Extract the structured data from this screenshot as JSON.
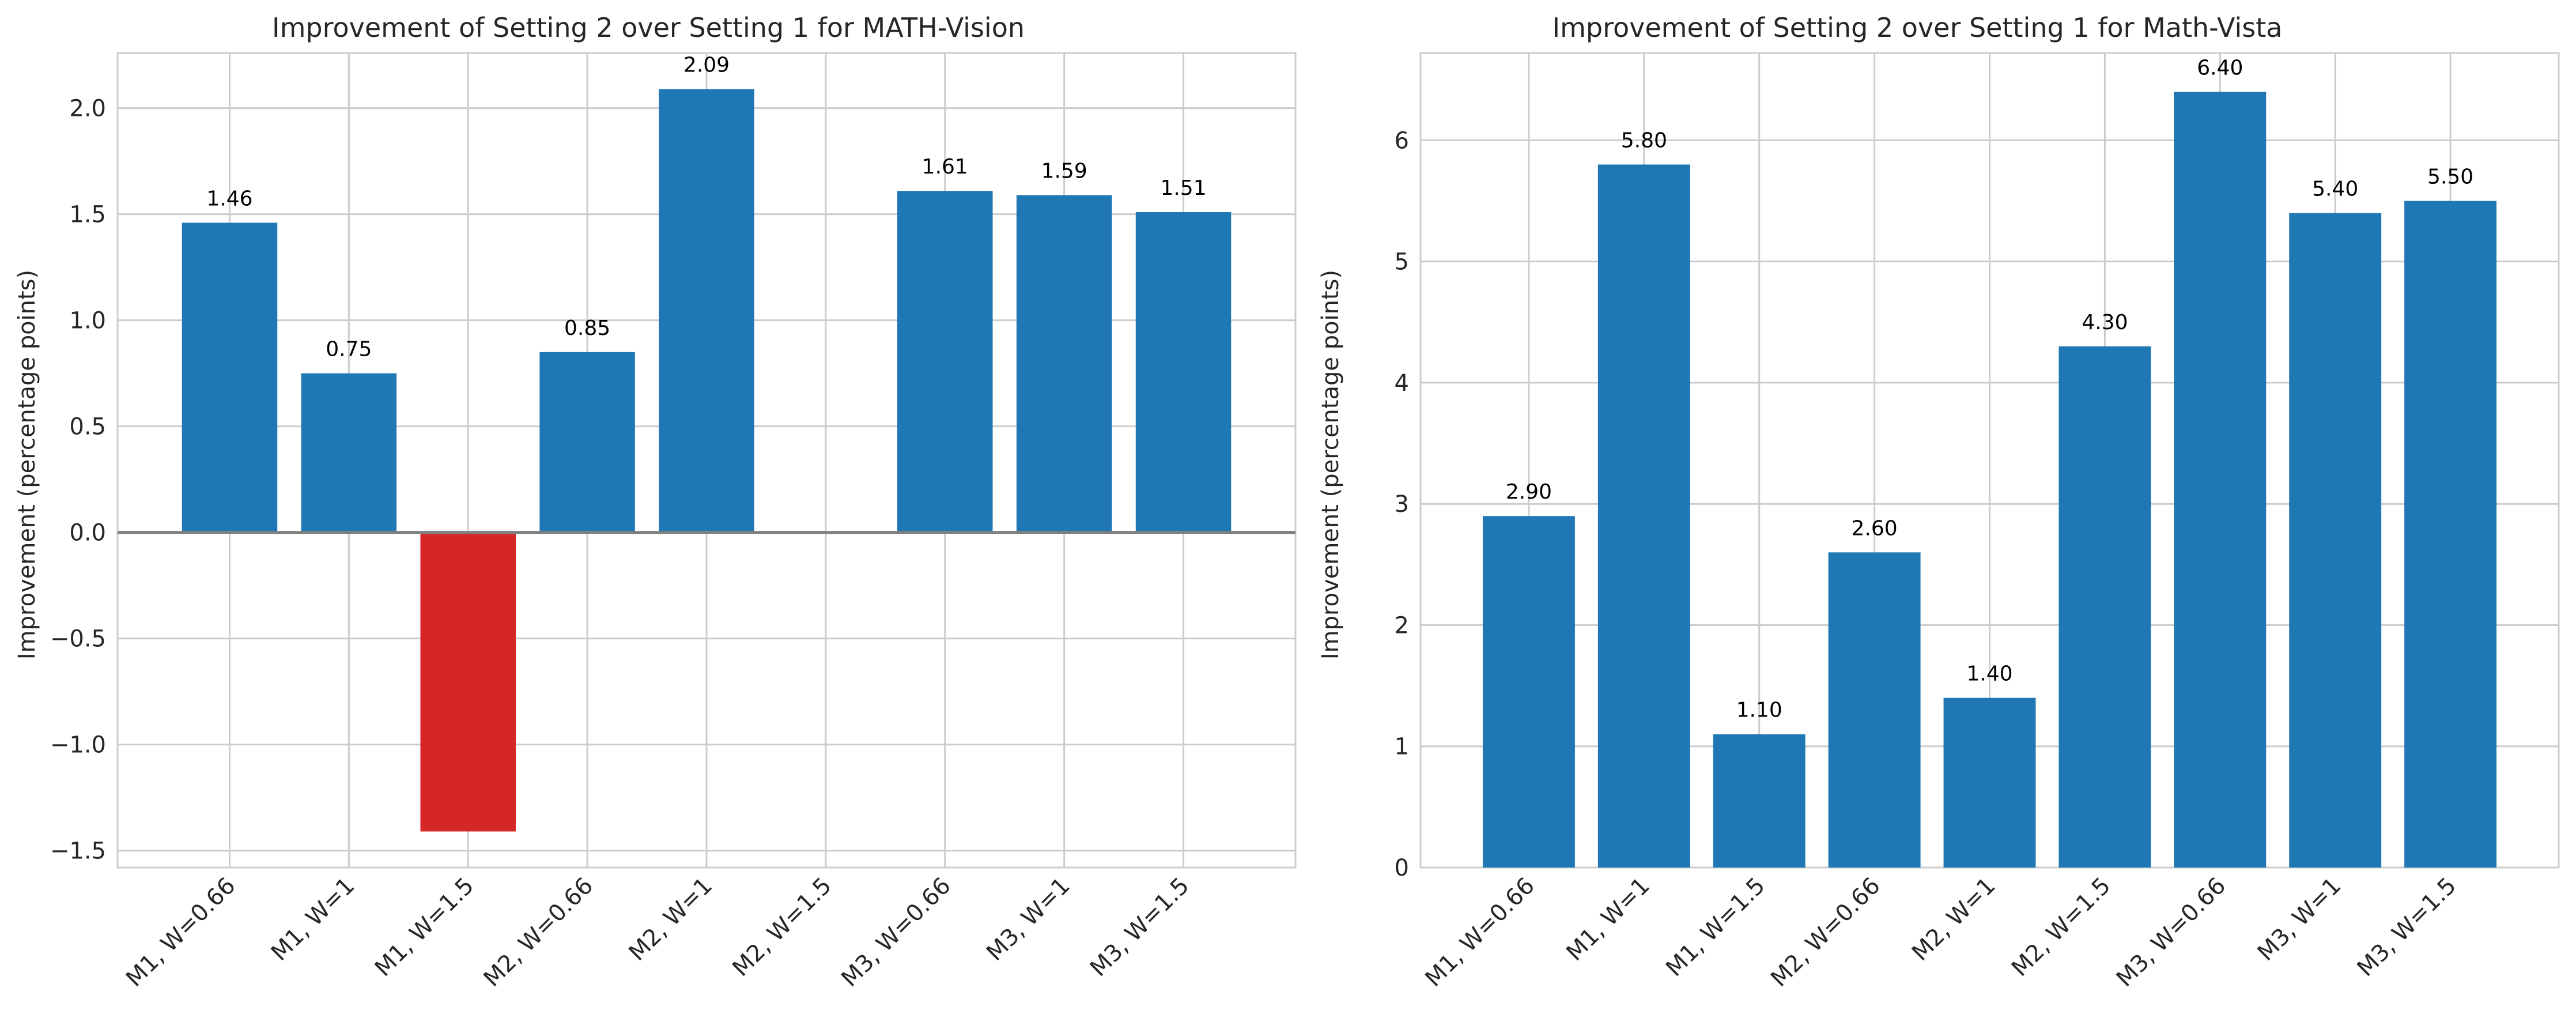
{
  "colors": {
    "positive": "#1f77b4",
    "negative": "#d62728",
    "grid": "#cccccc",
    "zero_line": "#808080"
  },
  "chart_data": [
    {
      "type": "bar",
      "title": "Improvement of Setting 2 over Setting 1 for MATH-Vision",
      "xlabel": "",
      "ylabel": "Improvement (percentage points)",
      "categories": [
        "M1, W=0.66",
        "M1, W=1",
        "M1, W=1.5",
        "M2, W=0.66",
        "M2, W=1",
        "M2, W=1.5",
        "M3, W=0.66",
        "M3, W=1",
        "M3, W=1.5"
      ],
      "values": [
        1.46,
        0.75,
        -1.41,
        0.85,
        2.09,
        null,
        1.61,
        1.59,
        1.51
      ],
      "data_labels": [
        "1.46",
        "0.75",
        "",
        "0.85",
        "2.09",
        "",
        "1.61",
        "1.59",
        "1.51"
      ],
      "yticks": [
        "−1.5",
        "−1.0",
        "−0.5",
        "0.0",
        "0.5",
        "1.0",
        "1.5",
        "2.0"
      ],
      "ytick_values": [
        -1.5,
        -1.0,
        -0.5,
        0.0,
        0.5,
        1.0,
        1.5,
        2.0
      ],
      "ylim": [
        -1.58,
        2.26
      ],
      "grid": true,
      "zero_line": true
    },
    {
      "type": "bar",
      "title": "Improvement of Setting 2 over Setting 1 for Math-Vista",
      "xlabel": "",
      "ylabel": "Improvement (percentage points)",
      "categories": [
        "M1, W=0.66",
        "M1, W=1",
        "M1, W=1.5",
        "M2, W=0.66",
        "M2, W=1",
        "M2, W=1.5",
        "M3, W=0.66",
        "M3, W=1",
        "M3, W=1.5"
      ],
      "values": [
        2.9,
        5.8,
        1.1,
        2.6,
        1.4,
        4.3,
        6.4,
        5.4,
        5.5
      ],
      "data_labels": [
        "2.90",
        "5.80",
        "1.10",
        "2.60",
        "1.40",
        "4.30",
        "6.40",
        "5.40",
        "5.50"
      ],
      "yticks": [
        "0",
        "1",
        "2",
        "3",
        "4",
        "5",
        "6"
      ],
      "ytick_values": [
        0,
        1,
        2,
        3,
        4,
        5,
        6
      ],
      "ylim": [
        0,
        6.72
      ],
      "grid": true,
      "zero_line": false
    }
  ]
}
